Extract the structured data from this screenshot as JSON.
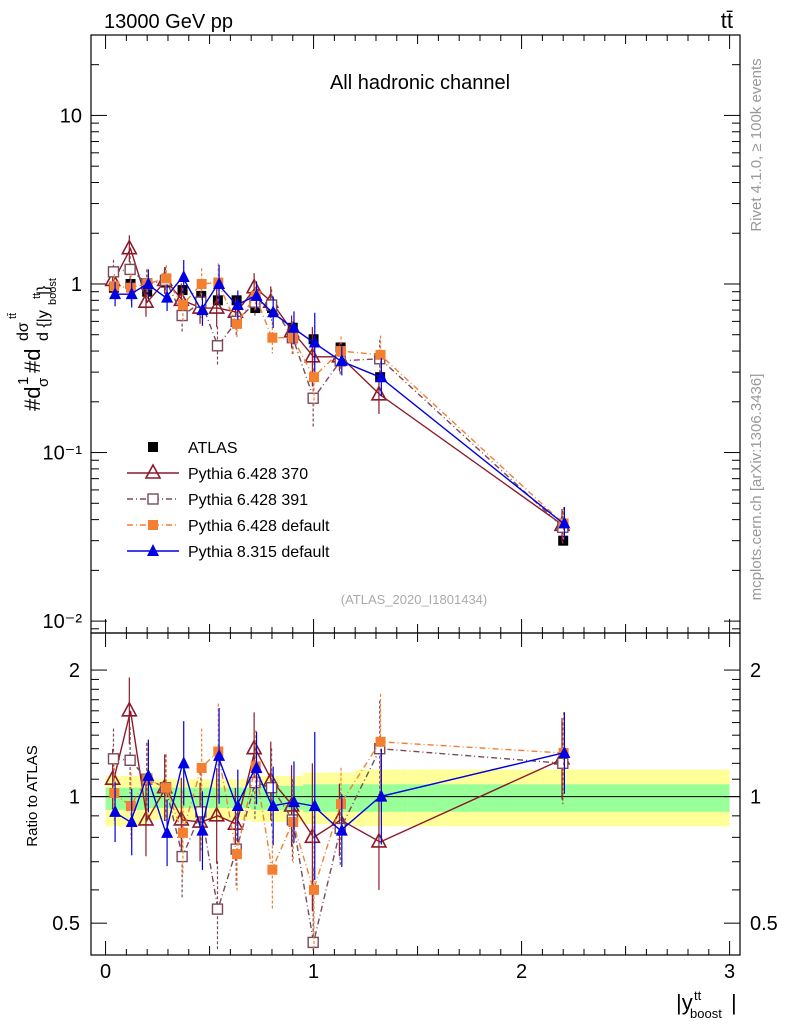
{
  "header": {
    "energy_label": "13000 GeV pp",
    "process_label": "tt̄",
    "side_text_top": "Rivet 4.1.0, ≥ 100k events",
    "side_text_bottom": "mcplots.cern.ch [arXiv:1306.3436]"
  },
  "chart_data": [
    {
      "type": "scatter",
      "title": "All hadronic channel",
      "watermark": "(ATLAS_2020_I1801434)",
      "ylabel": "#d1/σ#d dσ^ttbar / d{|y^tt_boost|}",
      "yscale": "log",
      "ylim": [
        0.0085,
        30
      ],
      "xlim": [
        -0.07,
        3.05
      ],
      "y_tick_labels": [
        "10",
        "1",
        "10⁻¹",
        "10⁻²"
      ],
      "legend_position": "middle-left",
      "x": [
        0.04,
        0.12,
        0.2,
        0.29,
        0.37,
        0.46,
        0.54,
        0.63,
        0.72,
        0.8,
        0.9,
        1.0,
        1.13,
        1.32,
        2.2
      ],
      "series": [
        {
          "name": "ATLAS",
          "color": "#000000",
          "marker": "square",
          "values": [
            0.95,
            1.0,
            0.9,
            1.02,
            0.92,
            0.85,
            0.8,
            0.8,
            0.72,
            0.72,
            0.55,
            0.47,
            0.42,
            0.28,
            0.03
          ]
        },
        {
          "name": "Pythia 6.428 370",
          "color": "#8b1a2b",
          "marker": "open-triangle",
          "line": "solid",
          "values": [
            1.05,
            1.62,
            0.78,
            1.05,
            0.8,
            0.72,
            0.72,
            0.68,
            0.95,
            0.78,
            0.52,
            0.37,
            0.37,
            0.22,
            0.037
          ]
        },
        {
          "name": "Pythia 6.428 391",
          "color": "#7a4a5a",
          "marker": "open-square",
          "line": "dash-dot",
          "values": [
            1.18,
            1.22,
            1.0,
            1.05,
            0.65,
            0.78,
            0.43,
            0.6,
            0.78,
            0.75,
            0.48,
            0.21,
            0.35,
            0.36,
            0.036
          ]
        },
        {
          "name": "Pythia 6.428 default",
          "color": "#f57f30",
          "marker": "filled-square",
          "line": "dash-dot",
          "values": [
            0.97,
            0.95,
            1.0,
            1.08,
            0.75,
            1.0,
            1.02,
            0.58,
            0.85,
            0.48,
            0.48,
            0.28,
            0.4,
            0.38,
            0.038
          ]
        },
        {
          "name": "Pythia 8.315 default",
          "color": "#0000e0",
          "marker": "filled-triangle",
          "line": "solid",
          "values": [
            0.87,
            0.87,
            1.0,
            0.83,
            1.1,
            0.7,
            1.0,
            0.75,
            0.85,
            0.68,
            0.55,
            0.45,
            0.35,
            0.28,
            0.038
          ]
        }
      ]
    },
    {
      "type": "scatter",
      "ylabel": "Ratio to ATLAS",
      "xlabel": "|y^tt_boost|",
      "ylim": [
        0.42,
        2.45
      ],
      "xlim": [
        -0.07,
        3.05
      ],
      "y_tick_labels": [
        "2",
        "1",
        "0.5"
      ],
      "x_tick_labels": [
        "0",
        "1",
        "2",
        "3"
      ],
      "x": [
        0.04,
        0.12,
        0.2,
        0.29,
        0.37,
        0.46,
        0.54,
        0.63,
        0.72,
        0.8,
        0.9,
        1.0,
        1.13,
        1.32,
        2.2
      ],
      "series": [
        {
          "name": "Pythia 6.428 370",
          "values": [
            1.1,
            1.6,
            0.88,
            1.05,
            0.88,
            0.87,
            0.9,
            0.86,
            1.3,
            1.09,
            0.95,
            0.8,
            0.88,
            0.78,
            1.23
          ]
        },
        {
          "name": "Pythia 6.428 391",
          "values": [
            1.23,
            1.22,
            1.1,
            1.05,
            0.72,
            0.92,
            0.54,
            0.75,
            1.08,
            1.05,
            0.88,
            0.45,
            0.84,
            1.3,
            1.2
          ]
        },
        {
          "name": "Pythia 6.428 default",
          "values": [
            1.02,
            0.95,
            1.1,
            1.05,
            0.82,
            1.17,
            1.28,
            0.73,
            1.18,
            0.67,
            0.87,
            0.6,
            0.96,
            1.35,
            1.27
          ]
        },
        {
          "name": "Pythia 8.315 default",
          "values": [
            0.92,
            0.87,
            1.12,
            0.82,
            1.2,
            0.83,
            1.25,
            0.95,
            1.17,
            0.95,
            0.97,
            0.95,
            0.83,
            1.0,
            1.27
          ]
        }
      ]
    }
  ]
}
